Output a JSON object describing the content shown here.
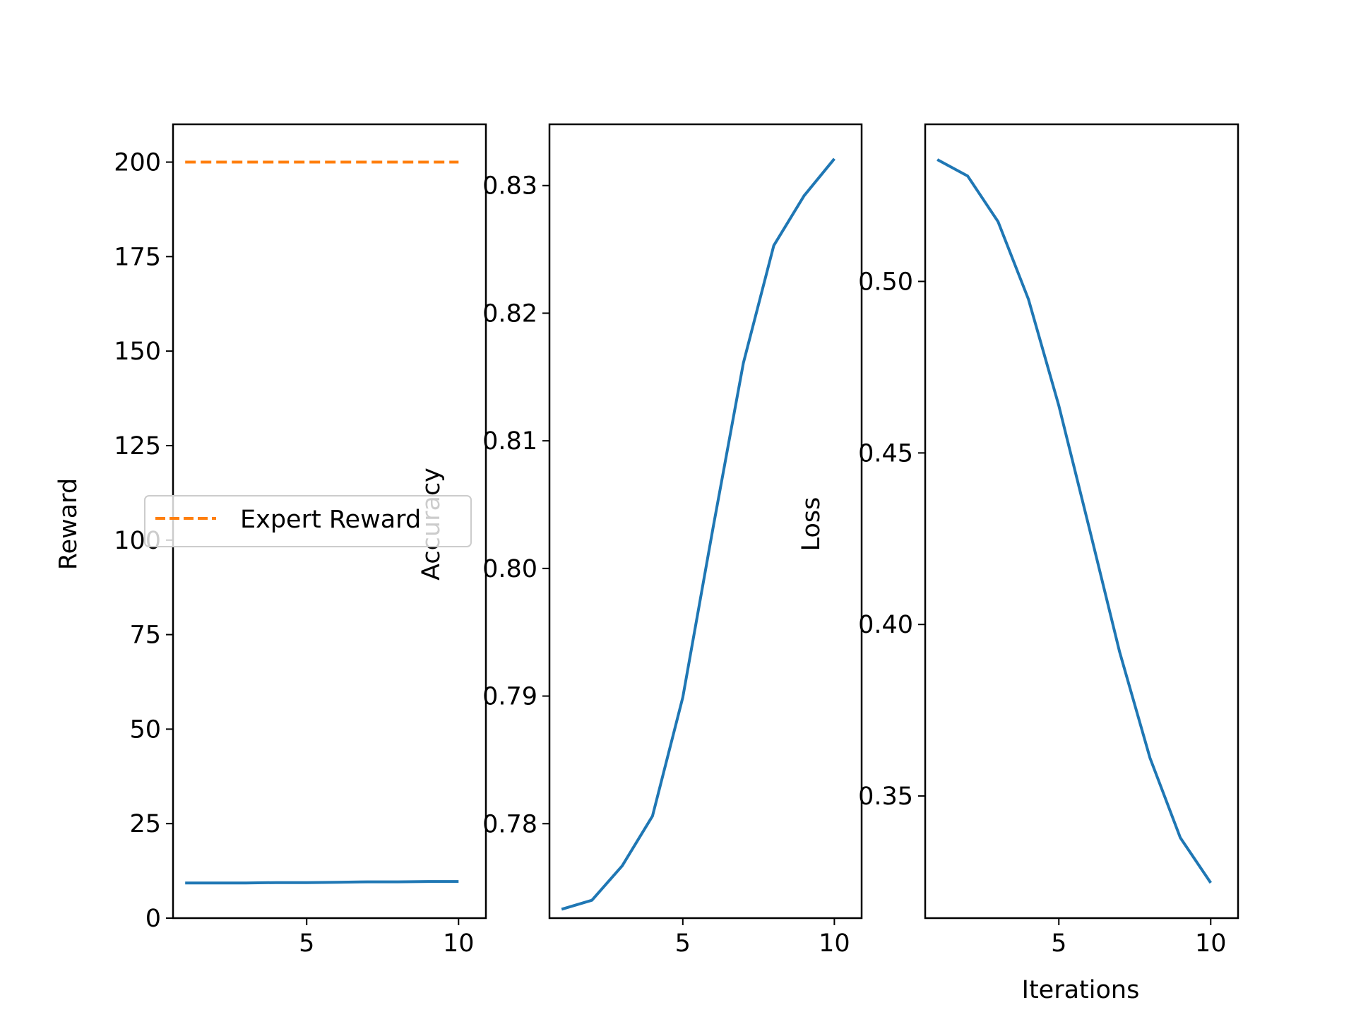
{
  "colors": {
    "series_blue": "#1f77b4",
    "series_orange": "#ff7f0e",
    "axes": "#000000",
    "background": "#ffffff"
  },
  "chart_data": [
    {
      "type": "line",
      "xlabel": "",
      "ylabel": "Reward",
      "xlim": [
        0.6,
        10.9
      ],
      "ylim": [
        0,
        210
      ],
      "xticks": [
        5,
        10
      ],
      "yticks": [
        0,
        25,
        50,
        75,
        100,
        125,
        150,
        175,
        200
      ],
      "ytick_labels": [
        "0",
        "25",
        "50",
        "75",
        "100",
        "125",
        "150",
        "175",
        "200"
      ],
      "grid": false,
      "legend": {
        "placement": "center-left",
        "entries": [
          "Expert Reward"
        ]
      },
      "series": [
        {
          "color": "#1f77b4",
          "style": "solid",
          "x": [
            1,
            2,
            3,
            4,
            5,
            6,
            7,
            8,
            9,
            10
          ],
          "values": [
            9.3,
            9.3,
            9.3,
            9.4,
            9.4,
            9.5,
            9.6,
            9.6,
            9.7,
            9.7
          ]
        },
        {
          "name": "Expert Reward",
          "color": "#ff7f0e",
          "style": "dashed",
          "x": [
            1,
            10
          ],
          "values": [
            200,
            200
          ]
        }
      ]
    },
    {
      "type": "line",
      "xlabel": "",
      "ylabel": "Accuracy",
      "xlim": [
        0.6,
        10.9
      ],
      "ylim": [
        0.7726,
        0.8348
      ],
      "xticks": [
        5,
        10
      ],
      "yticks": [
        0.78,
        0.79,
        0.8,
        0.81,
        0.82,
        0.83
      ],
      "ytick_labels": [
        "0.78",
        "0.79",
        "0.80",
        "0.81",
        "0.82",
        "0.83"
      ],
      "grid": false,
      "series": [
        {
          "color": "#1f77b4",
          "style": "solid",
          "x": [
            1,
            2,
            3,
            4,
            5,
            6,
            7,
            8,
            9,
            10
          ],
          "values": [
            0.7733,
            0.774,
            0.7767,
            0.7806,
            0.7899,
            0.8032,
            0.8161,
            0.8253,
            0.8292,
            0.8321
          ]
        }
      ]
    },
    {
      "type": "line",
      "xlabel": "Iterations",
      "ylabel": "Loss",
      "xlim": [
        0.6,
        10.9
      ],
      "ylim": [
        0.3144,
        0.5458
      ],
      "xticks": [
        5,
        10
      ],
      "yticks": [
        0.35,
        0.4,
        0.45,
        0.5
      ],
      "ytick_labels": [
        "0.35",
        "0.40",
        "0.45",
        "0.50"
      ],
      "grid": false,
      "series": [
        {
          "color": "#1f77b4",
          "style": "solid",
          "x": [
            1,
            2,
            3,
            4,
            5,
            6,
            7,
            8,
            9,
            10
          ],
          "values": [
            0.5355,
            0.5307,
            0.5174,
            0.4948,
            0.4638,
            0.4281,
            0.392,
            0.3611,
            0.3378,
            0.3247
          ]
        }
      ]
    }
  ]
}
